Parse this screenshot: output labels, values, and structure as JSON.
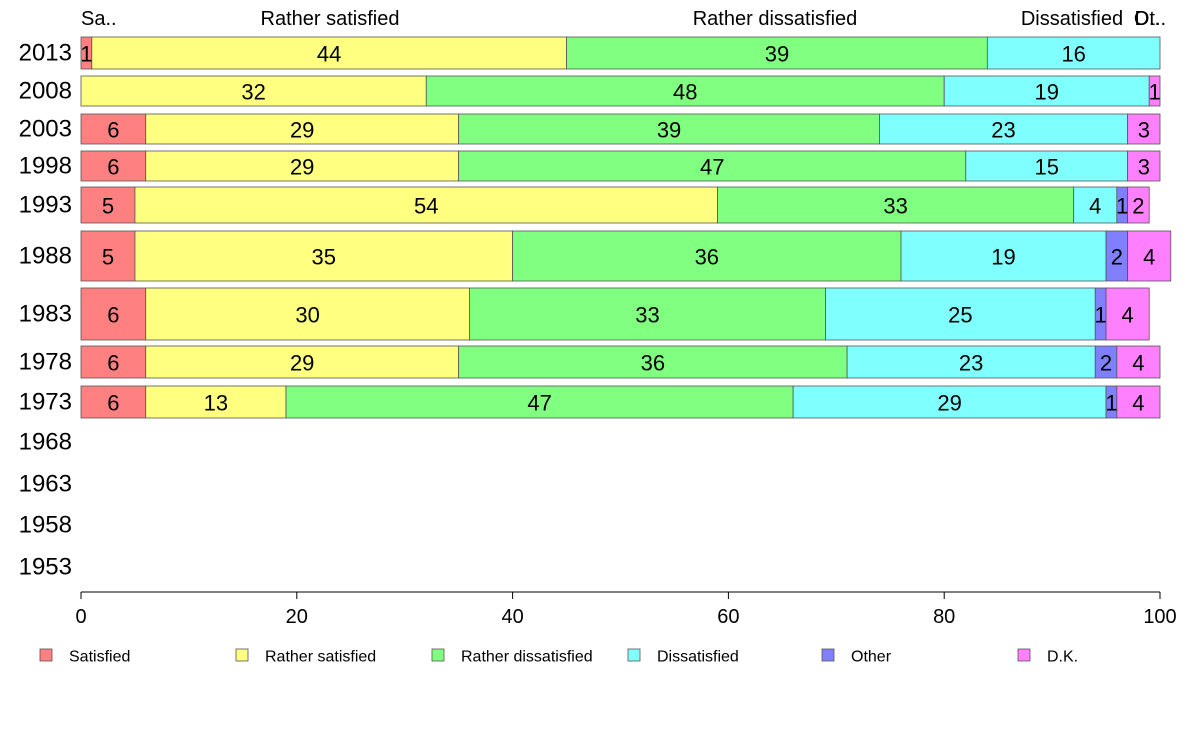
{
  "chart_data": {
    "type": "bar",
    "orientation": "horizontal",
    "stacked": true,
    "categories": [
      "2013",
      "2008",
      "2003",
      "1998",
      "1993",
      "1988",
      "1983",
      "1978",
      "1973",
      "1968",
      "1963",
      "1958",
      "1953"
    ],
    "series": [
      {
        "name": "Satisfied",
        "color": "#ff8080",
        "values": [
          1,
          0,
          6,
          6,
          5,
          5,
          6,
          6,
          6,
          null,
          null,
          null,
          null
        ],
        "labels": [
          "1",
          "",
          "6",
          "6",
          "5",
          "5",
          "6",
          "6",
          "6",
          "",
          "",
          "",
          ""
        ]
      },
      {
        "name": "Rather satisfied",
        "color": "#ffff80",
        "values": [
          44,
          32,
          29,
          29,
          54,
          35,
          30,
          29,
          13,
          null,
          null,
          null,
          null
        ],
        "labels": [
          "44",
          "32",
          "29",
          "29",
          "54",
          "35",
          "30",
          "29",
          "13",
          "",
          "",
          "",
          ""
        ]
      },
      {
        "name": "Rather dissatisfied",
        "color": "#80ff80",
        "values": [
          39,
          48,
          39,
          47,
          33,
          36,
          33,
          36,
          47,
          null,
          null,
          null,
          null
        ],
        "labels": [
          "39",
          "48",
          "39",
          "47",
          "33",
          "36",
          "33",
          "36",
          "47",
          "",
          "",
          "",
          ""
        ]
      },
      {
        "name": "Dissatisfied",
        "color": "#80ffff",
        "values": [
          16,
          19,
          23,
          15,
          4,
          19,
          25,
          23,
          29,
          null,
          null,
          null,
          null
        ],
        "labels": [
          "16",
          "19",
          "23",
          "15",
          "4",
          "19",
          "25",
          "23",
          "29",
          "",
          "",
          "",
          ""
        ]
      },
      {
        "name": "Other",
        "color": "#8080ff",
        "values": [
          0,
          0,
          0,
          0,
          1,
          2,
          1,
          2,
          1,
          null,
          null,
          null,
          null
        ],
        "labels": [
          "",
          "",
          "",
          "",
          "1",
          "2",
          "1",
          "2",
          "1",
          "",
          "",
          "",
          ""
        ]
      },
      {
        "name": "D.K.",
        "color": "#ff80ff",
        "values": [
          0,
          1,
          3,
          3,
          2,
          4,
          4,
          4,
          4,
          null,
          null,
          null,
          null
        ],
        "labels": [
          "",
          "1",
          "3",
          "3",
          "2",
          "4",
          "4",
          "4",
          "4",
          "",
          "",
          "",
          ""
        ]
      }
    ],
    "top_labels": [
      "Sa..",
      "Rather satisfied",
      "Rather dissatisfied",
      "Dissatisfied",
      "Ot..",
      "D.."
    ],
    "xlim": [
      0,
      100
    ],
    "xticks": [
      0,
      20,
      40,
      60,
      80,
      100
    ],
    "grid": false,
    "legend_position": "bottom"
  }
}
